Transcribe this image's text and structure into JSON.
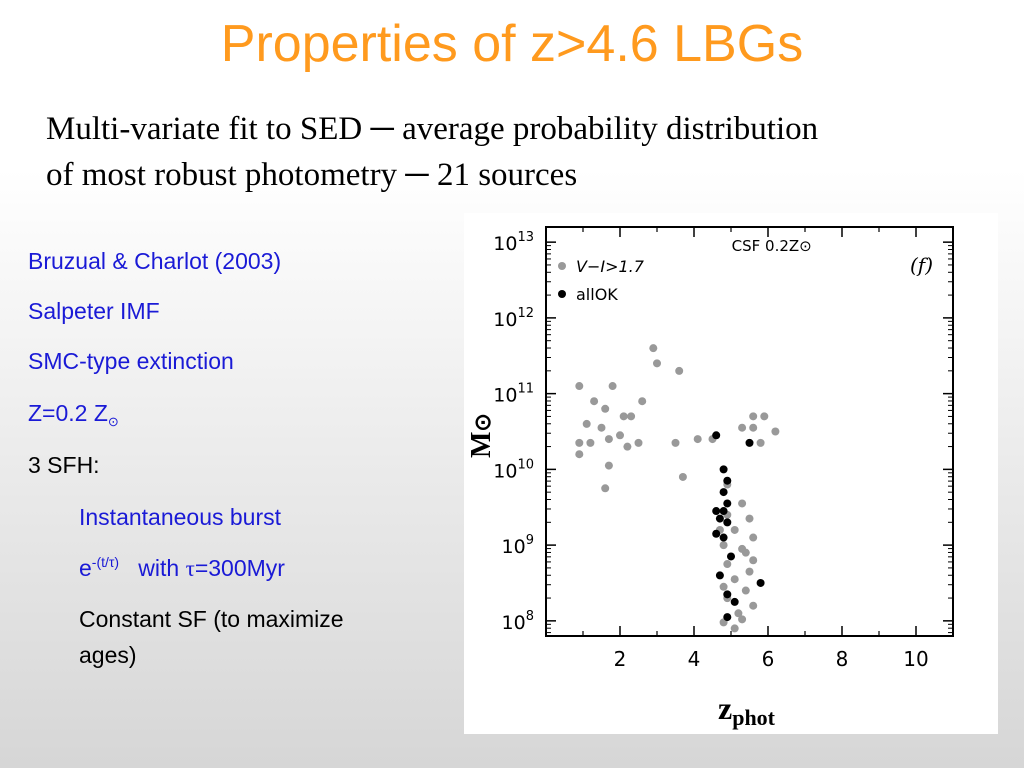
{
  "slide": {
    "title": "Properties of z>4.6 LBGs",
    "subtitle_line1": "Multi-variate fit to SED ─ average probability distribution",
    "subtitle_line2": "of most robust photometry ─ 21 sources"
  },
  "bullets": {
    "model": "Bruzual & Charlot (2003)",
    "imf": "Salpeter IMF",
    "extinction": "SMC-type extinction",
    "metal_prefix": "Z=0.2 Z",
    "metal_symbol": "⊙",
    "sfh_header": "3 SFH:",
    "sfh_burst": "Instantaneous burst",
    "sfh_exp_base": "e",
    "sfh_exp_power": "-(t/τ)",
    "sfh_exp_with": "with ",
    "sfh_exp_tau": "τ",
    "sfh_exp_value": "=300Myr",
    "sfh_const_line1": "Constant SF (to maximize",
    "sfh_const_line2": "ages)"
  },
  "axis_labels": {
    "y_main": "M",
    "y_symbol": "⊙",
    "x_main": "z",
    "x_sub": "phot"
  },
  "chart_data": {
    "type": "scatter",
    "panel_label": "(f)",
    "annotation": "CSF  0.2Z⊙",
    "xlim": [
      0,
      11
    ],
    "ylim_log10": [
      7.8,
      13.2
    ],
    "y_scale": "log",
    "x_ticks": [
      2,
      4,
      6,
      8,
      10
    ],
    "y_ticks": [
      {
        "exp": 8,
        "label": "10",
        "sup": "8"
      },
      {
        "exp": 9,
        "label": "10",
        "sup": "9"
      },
      {
        "exp": 10,
        "label": "10",
        "sup": "10"
      },
      {
        "exp": 11,
        "label": "10",
        "sup": "11"
      },
      {
        "exp": 12,
        "label": "10",
        "sup": "12"
      },
      {
        "exp": 13,
        "label": "10",
        "sup": "13"
      }
    ],
    "legend_position": "top-left",
    "series": [
      {
        "name": "V−I>1.7",
        "color": "#999999",
        "points_log10": [
          [
            0.9,
            11.1
          ],
          [
            1.3,
            10.9
          ],
          [
            1.6,
            10.8
          ],
          [
            1.8,
            11.1
          ],
          [
            2.1,
            10.7
          ],
          [
            2.3,
            10.7
          ],
          [
            2.6,
            10.9
          ],
          [
            2.9,
            11.6
          ],
          [
            3.0,
            11.4
          ],
          [
            3.6,
            11.3
          ],
          [
            1.1,
            10.6
          ],
          [
            1.5,
            10.55
          ],
          [
            1.2,
            10.35
          ],
          [
            0.9,
            10.35
          ],
          [
            1.7,
            10.4
          ],
          [
            2.0,
            10.45
          ],
          [
            2.2,
            10.3
          ],
          [
            0.9,
            10.2
          ],
          [
            2.5,
            10.35
          ],
          [
            3.5,
            10.35
          ],
          [
            4.1,
            10.4
          ],
          [
            4.5,
            10.4
          ],
          [
            5.3,
            10.55
          ],
          [
            5.6,
            10.55
          ],
          [
            5.9,
            10.7
          ],
          [
            5.6,
            10.7
          ],
          [
            6.2,
            10.5
          ],
          [
            5.8,
            10.35
          ],
          [
            1.7,
            10.05
          ],
          [
            3.7,
            9.9
          ],
          [
            1.6,
            9.75
          ],
          [
            4.9,
            9.8
          ],
          [
            5.3,
            9.55
          ],
          [
            5.5,
            9.35
          ],
          [
            5.6,
            9.1
          ],
          [
            5.1,
            9.2
          ],
          [
            4.8,
            9.0
          ],
          [
            5.3,
            8.95
          ],
          [
            5.6,
            8.8
          ],
          [
            4.9,
            8.75
          ],
          [
            5.5,
            8.65
          ],
          [
            5.1,
            8.55
          ],
          [
            4.8,
            8.45
          ],
          [
            5.4,
            8.4
          ],
          [
            5.6,
            8.2
          ],
          [
            4.9,
            8.3
          ],
          [
            5.2,
            8.1
          ],
          [
            4.8,
            7.98
          ],
          [
            5.3,
            8.02
          ],
          [
            5.1,
            7.9
          ],
          [
            4.9,
            9.4
          ],
          [
            4.7,
            9.2
          ],
          [
            5.4,
            8.9
          ]
        ]
      },
      {
        "name": "allOK",
        "color": "#000000",
        "points_log10": [
          [
            4.6,
            10.45
          ],
          [
            5.5,
            10.35
          ],
          [
            4.8,
            10.0
          ],
          [
            4.9,
            9.85
          ],
          [
            4.8,
            9.7
          ],
          [
            4.9,
            9.55
          ],
          [
            4.6,
            9.45
          ],
          [
            4.8,
            9.45
          ],
          [
            4.7,
            9.35
          ],
          [
            4.9,
            9.3
          ],
          [
            4.6,
            9.15
          ],
          [
            4.8,
            9.1
          ],
          [
            5.0,
            8.85
          ],
          [
            4.7,
            8.6
          ],
          [
            5.8,
            8.5
          ],
          [
            4.9,
            8.35
          ],
          [
            4.9,
            8.05
          ],
          [
            5.1,
            8.25
          ]
        ]
      }
    ]
  }
}
